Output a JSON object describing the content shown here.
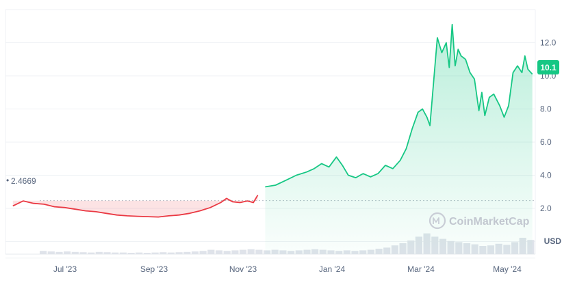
{
  "chart_data": {
    "type": "area",
    "x_ticks": [
      "Jul '23",
      "Sep '23",
      "Nov '23",
      "Jan '24",
      "Mar '24",
      "May '24"
    ],
    "y_ticks": [
      2.0,
      4.0,
      6.0,
      8.0,
      10.0,
      12.0
    ],
    "y_tick_labels": [
      "2.0",
      "4.0",
      "6.0",
      "8.0",
      "10.0",
      "12.0"
    ],
    "ylim": [
      -2.0,
      14.0
    ],
    "x_range": [
      "2023-06-10",
      "2024-06-01"
    ],
    "baseline": {
      "value": 2.4669,
      "label": "2.4669"
    },
    "current": {
      "value": 10.1,
      "label": "10.1"
    },
    "currency_label": "USD",
    "watermark": "CoinMarketCap",
    "colors": {
      "up": "#16c784",
      "down": "#ea3943",
      "current_badge": "#16c784"
    },
    "series": [
      {
        "values": [
          [
            "2023-06-15",
            2.15
          ],
          [
            "2023-06-22",
            2.45
          ],
          [
            "2023-06-29",
            2.3
          ],
          [
            "2023-07-06",
            2.25
          ],
          [
            "2023-07-13",
            2.1
          ],
          [
            "2023-07-20",
            2.05
          ],
          [
            "2023-07-27",
            1.95
          ],
          [
            "2023-08-03",
            1.85
          ],
          [
            "2023-08-10",
            1.8
          ],
          [
            "2023-08-17",
            1.7
          ],
          [
            "2023-08-24",
            1.6
          ],
          [
            "2023-08-31",
            1.55
          ],
          [
            "2023-09-07",
            1.52
          ],
          [
            "2023-09-14",
            1.5
          ],
          [
            "2023-09-21",
            1.48
          ],
          [
            "2023-09-28",
            1.55
          ],
          [
            "2023-10-05",
            1.6
          ],
          [
            "2023-10-12",
            1.7
          ],
          [
            "2023-10-19",
            1.85
          ],
          [
            "2023-10-26",
            2.05
          ],
          [
            "2023-11-02",
            2.35
          ],
          [
            "2023-11-06",
            2.6
          ],
          [
            "2023-11-10",
            2.4
          ],
          [
            "2023-11-15",
            2.35
          ],
          [
            "2023-11-20",
            2.45
          ],
          [
            "2023-11-24",
            2.35
          ],
          [
            "2023-11-27",
            2.8
          ],
          [
            "2023-12-02",
            3.3
          ],
          [
            "2023-12-09",
            3.4
          ],
          [
            "2023-12-16",
            3.7
          ],
          [
            "2023-12-23",
            4.0
          ],
          [
            "2023-12-30",
            4.2
          ],
          [
            "2024-01-04",
            4.4
          ],
          [
            "2024-01-09",
            4.7
          ],
          [
            "2024-01-14",
            4.5
          ],
          [
            "2024-01-19",
            5.1
          ],
          [
            "2024-01-23",
            4.6
          ],
          [
            "2024-01-27",
            4.0
          ],
          [
            "2024-02-01",
            3.85
          ],
          [
            "2024-02-06",
            4.1
          ],
          [
            "2024-02-11",
            3.9
          ],
          [
            "2024-02-16",
            4.1
          ],
          [
            "2024-02-21",
            4.6
          ],
          [
            "2024-02-26",
            4.4
          ],
          [
            "2024-03-02",
            4.9
          ],
          [
            "2024-03-06",
            5.6
          ],
          [
            "2024-03-10",
            6.8
          ],
          [
            "2024-03-14",
            7.8
          ],
          [
            "2024-03-17",
            8.0
          ],
          [
            "2024-03-20",
            7.5
          ],
          [
            "2024-03-22",
            7.0
          ],
          [
            "2024-03-25",
            10.2
          ],
          [
            "2024-03-27",
            12.3
          ],
          [
            "2024-03-30",
            11.4
          ],
          [
            "2024-04-02",
            12.0
          ],
          [
            "2024-04-04",
            10.5
          ],
          [
            "2024-04-06",
            13.1
          ],
          [
            "2024-04-08",
            10.6
          ],
          [
            "2024-04-10",
            11.6
          ],
          [
            "2024-04-12",
            11.2
          ],
          [
            "2024-04-15",
            11.0
          ],
          [
            "2024-04-18",
            10.2
          ],
          [
            "2024-04-21",
            9.8
          ],
          [
            "2024-04-24",
            7.9
          ],
          [
            "2024-04-26",
            9.0
          ],
          [
            "2024-04-28",
            7.6
          ],
          [
            "2024-05-01",
            8.7
          ],
          [
            "2024-05-04",
            8.9
          ],
          [
            "2024-05-08",
            8.2
          ],
          [
            "2024-05-11",
            7.5
          ],
          [
            "2024-05-14",
            8.2
          ],
          [
            "2024-05-17",
            10.2
          ],
          [
            "2024-05-20",
            10.6
          ],
          [
            "2024-05-23",
            10.2
          ],
          [
            "2024-05-25",
            11.2
          ],
          [
            "2024-05-27",
            10.4
          ],
          [
            "2024-05-30",
            10.1
          ]
        ]
      }
    ],
    "volume": [
      0.6,
      0.5,
      0.4,
      0.5,
      0.4,
      0.35,
      0.3,
      0.4,
      0.35,
      0.3,
      0.3,
      0.25,
      0.3,
      0.25,
      0.3,
      0.35,
      0.3,
      0.35,
      0.4,
      0.5,
      0.6,
      0.8,
      0.7,
      0.6,
      0.7,
      0.8,
      0.9,
      0.8,
      0.7,
      0.8,
      0.7,
      0.6,
      0.7,
      0.8,
      0.9,
      0.8,
      0.7,
      0.6,
      0.7,
      0.6,
      0.7,
      0.8,
      1.0,
      1.2,
      1.6,
      2.0,
      2.5,
      3.2,
      3.8,
      3.2,
      2.8,
      2.4,
      2.2,
      2.0,
      1.8,
      1.5,
      1.6,
      1.9,
      1.7,
      2.2,
      3.0,
      2.6
    ]
  }
}
